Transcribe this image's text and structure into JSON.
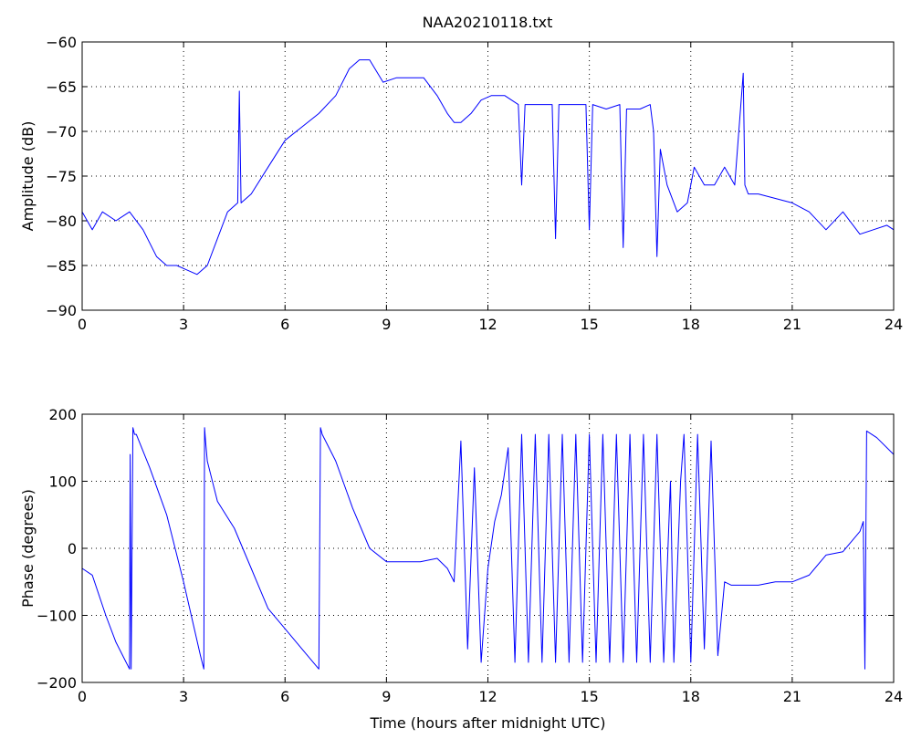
{
  "title": "NAA20210118.txt",
  "colors": {
    "line": "#0000ff",
    "axes": "#000000",
    "grid": "#000000"
  },
  "chart_data": [
    {
      "type": "line",
      "title": "NAA20210118.txt",
      "xlabel": "",
      "ylabel": "Amplitude (dB)",
      "xlim": [
        0,
        24
      ],
      "ylim": [
        -90,
        -60
      ],
      "xticks": [
        "0",
        "3",
        "6",
        "9",
        "12",
        "15",
        "18",
        "21",
        "24"
      ],
      "yticks": [
        "−90",
        "−85",
        "−80",
        "−75",
        "−70",
        "−65",
        "−60"
      ],
      "grid": true,
      "series": [
        {
          "x": [
            0,
            0.3,
            0.6,
            1.0,
            1.4,
            1.8,
            2.2,
            2.5,
            2.8,
            3.1,
            3.4,
            3.7,
            4.0,
            4.3,
            4.6,
            4.65,
            4.7,
            5.0,
            5.5,
            6.0,
            6.5,
            7.0,
            7.5,
            7.9,
            8.2,
            8.5,
            8.9,
            9.3,
            9.7,
            10.1,
            10.5,
            10.8,
            11.0,
            11.2,
            11.5,
            11.8,
            12.1,
            12.5,
            12.9,
            13.0,
            13.1,
            13.5,
            13.9,
            14.0,
            14.1,
            14.5,
            14.9,
            15.0,
            15.1,
            15.5,
            15.9,
            16.0,
            16.1,
            16.5,
            16.8,
            16.9,
            17.0,
            17.1,
            17.3,
            17.6,
            17.9,
            18.1,
            18.4,
            18.7,
            19.0,
            19.3,
            19.55,
            19.6,
            19.7,
            20.0,
            20.5,
            21.0,
            21.5,
            22.0,
            22.5,
            23.0,
            23.4,
            23.8,
            24.0
          ],
          "y": [
            -79,
            -81,
            -79,
            -80,
            -79,
            -81,
            -84,
            -85,
            -85,
            -85.5,
            -86,
            -85,
            -82,
            -79,
            -78,
            -65.5,
            -78,
            -77,
            -74,
            -71,
            -69.5,
            -68,
            -66,
            -63,
            -62,
            -62,
            -64.5,
            -64,
            -64,
            -64,
            -66,
            -68,
            -69,
            -69,
            -68,
            -66.5,
            -66,
            -66,
            -67,
            -76,
            -67,
            -67,
            -67,
            -82,
            -67,
            -67,
            -67,
            -81,
            -67,
            -67.5,
            -67,
            -83,
            -67.5,
            -67.5,
            -67,
            -70,
            -84,
            -72,
            -76,
            -79,
            -78,
            -74,
            -76,
            -76,
            -74,
            -76,
            -63.5,
            -76,
            -77,
            -77,
            -77.5,
            -78,
            -79,
            -81,
            -79,
            -81.5,
            -81,
            -80.5,
            -81
          ]
        }
      ]
    },
    {
      "type": "line",
      "title": "",
      "xlabel": "Time (hours after midnight UTC)",
      "ylabel": "Phase (degrees)",
      "xlim": [
        0,
        24
      ],
      "ylim": [
        -200,
        200
      ],
      "xticks": [
        "0",
        "3",
        "6",
        "9",
        "12",
        "15",
        "18",
        "21",
        "24"
      ],
      "yticks": [
        "−200",
        "−100",
        "0",
        "100",
        "200"
      ],
      "grid": true,
      "series": [
        {
          "x": [
            0,
            0.3,
            0.7,
            1.0,
            1.3,
            1.4,
            1.42,
            1.45,
            1.5,
            1.55,
            1.6,
            2.0,
            2.5,
            3.0,
            3.5,
            3.6,
            3.62,
            3.65,
            3.7,
            4.0,
            4.5,
            5.0,
            5.5,
            6.0,
            6.5,
            7.0,
            7.05,
            7.1,
            7.5,
            8.0,
            8.5,
            9.0,
            9.5,
            10.0,
            10.5,
            10.8,
            11.0,
            11.2,
            11.4,
            11.6,
            11.8,
            12.0,
            12.2,
            12.4,
            12.6,
            12.8,
            13.0,
            13.2,
            13.4,
            13.6,
            13.8,
            14.0,
            14.2,
            14.4,
            14.6,
            14.8,
            15.0,
            15.2,
            15.4,
            15.6,
            15.8,
            16.0,
            16.2,
            16.4,
            16.6,
            16.8,
            17.0,
            17.2,
            17.4,
            17.5,
            17.7,
            17.8,
            18.0,
            18.2,
            18.4,
            18.6,
            18.8,
            19.0,
            19.2,
            19.5,
            20.0,
            20.5,
            21.0,
            21.5,
            22.0,
            22.5,
            23.0,
            23.1,
            23.15,
            23.2,
            23.5,
            24.0
          ],
          "y": [
            -30,
            -40,
            -100,
            -140,
            -170,
            -180,
            140,
            -180,
            180,
            170,
            170,
            120,
            50,
            -50,
            -160,
            -180,
            180,
            160,
            130,
            70,
            30,
            -30,
            -90,
            -120,
            -150,
            -180,
            180,
            170,
            130,
            60,
            0,
            -20,
            -20,
            -20,
            -15,
            -30,
            -50,
            160,
            -150,
            120,
            -170,
            -30,
            40,
            80,
            150,
            -170,
            170,
            -170,
            170,
            -170,
            170,
            -170,
            170,
            -170,
            170,
            -170,
            170,
            -170,
            170,
            -170,
            170,
            -170,
            170,
            -170,
            170,
            -170,
            170,
            -170,
            100,
            -170,
            100,
            170,
            -170,
            170,
            -150,
            160,
            -160,
            -50,
            -55,
            -55,
            -55,
            -50,
            -50,
            -40,
            -10,
            -5,
            25,
            40,
            -180,
            175,
            165,
            140
          ]
        }
      ]
    }
  ]
}
